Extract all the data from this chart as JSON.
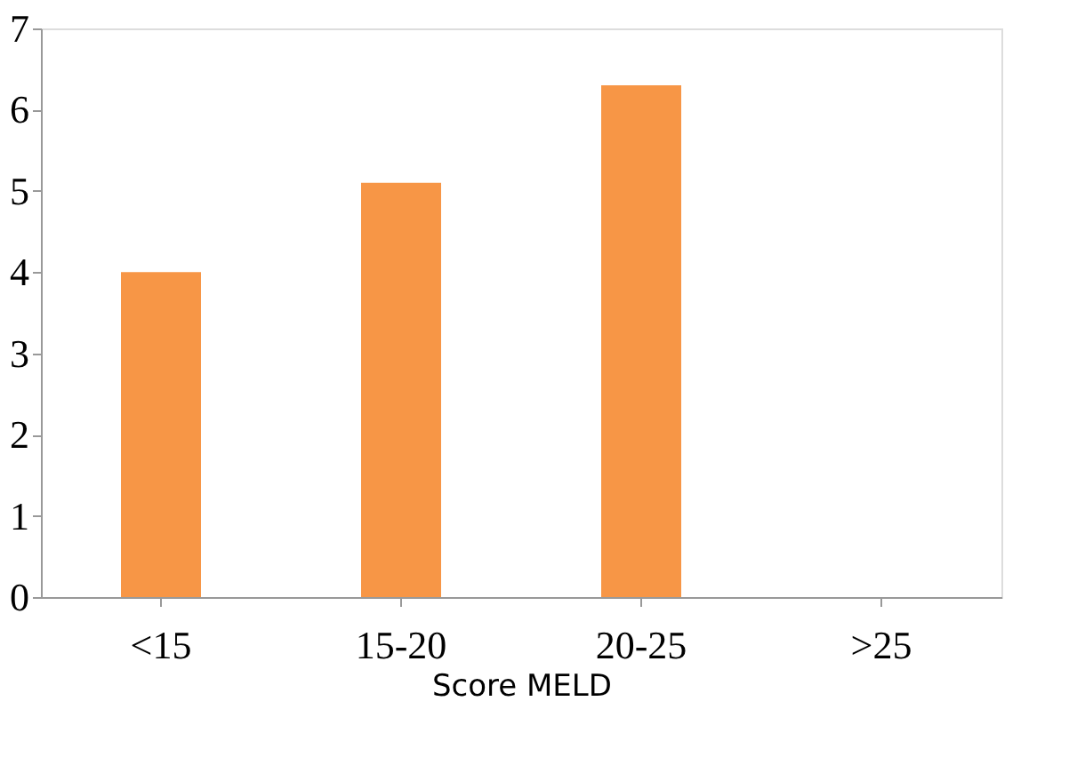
{
  "chart_data": {
    "type": "bar",
    "xlabel": "Score MELD",
    "categories": [
      "<15",
      "15-20",
      "20-25",
      ">25"
    ],
    "values": [
      4.0,
      5.1,
      6.3,
      null
    ],
    "color": "#f79646",
    "ylim": [
      0,
      7
    ],
    "yticks": [
      0,
      1,
      2,
      3,
      4,
      5,
      6,
      7
    ],
    "grid": false
  }
}
